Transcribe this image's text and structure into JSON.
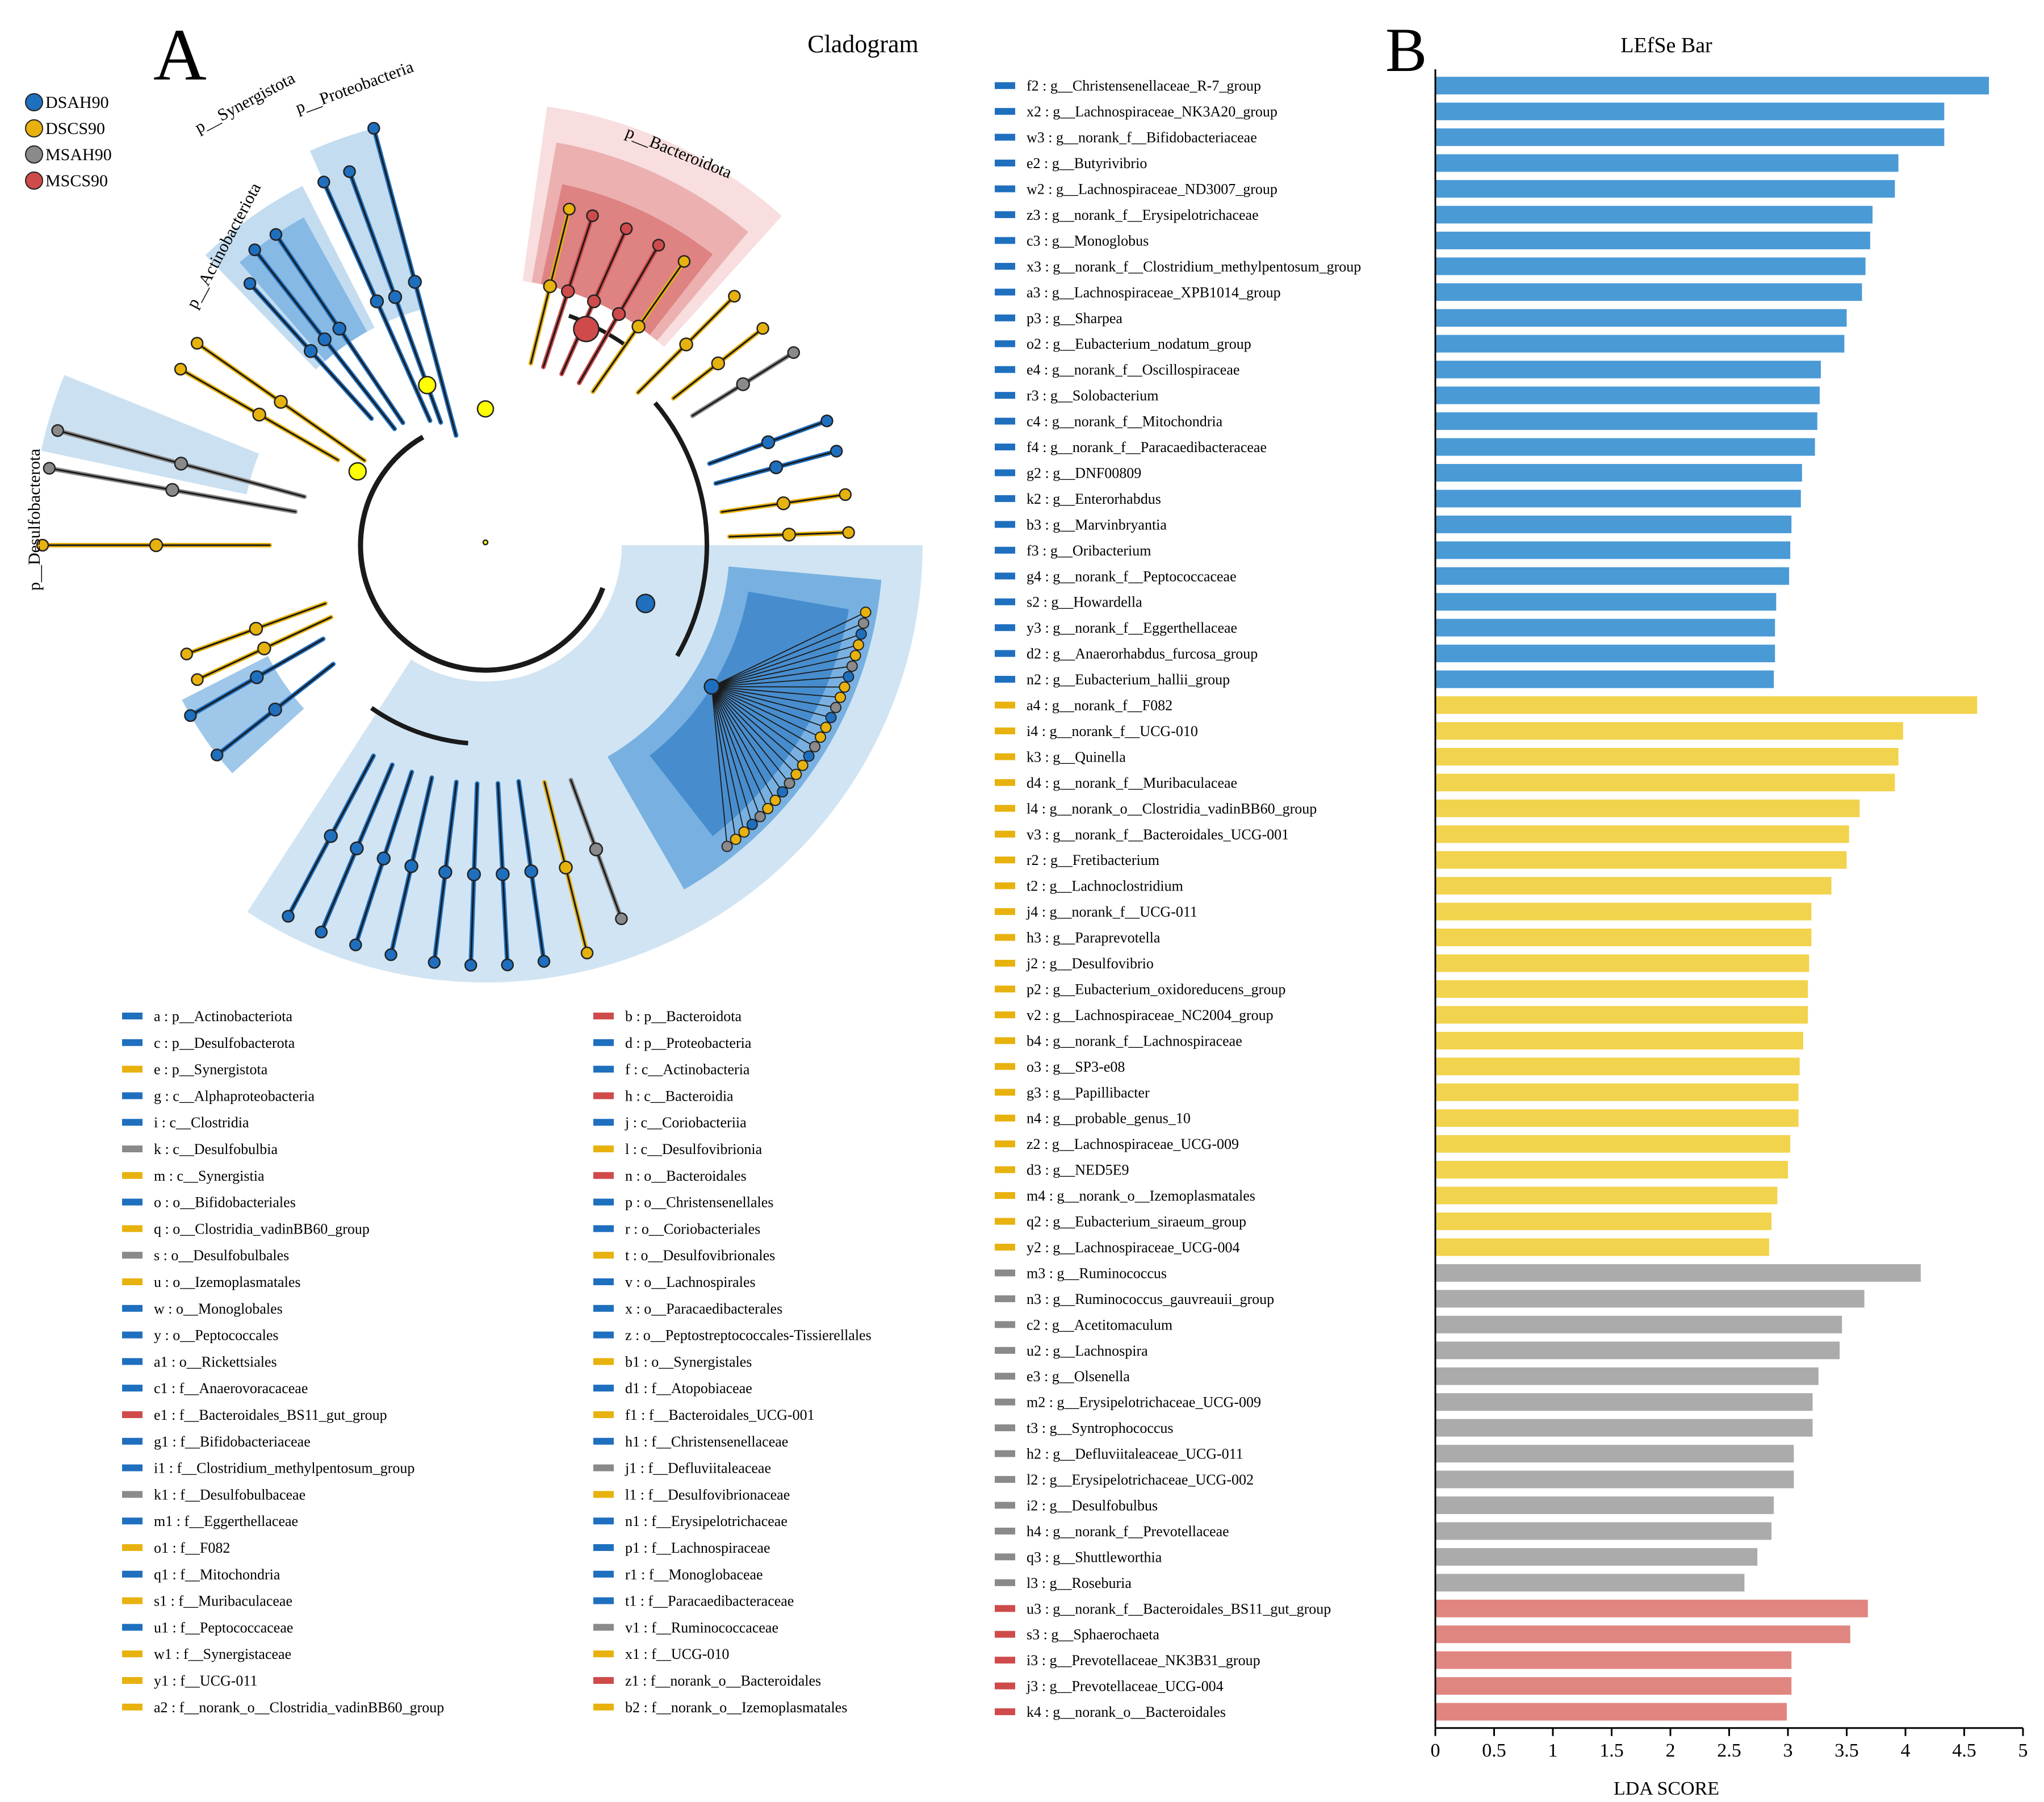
{
  "panel_a": {
    "letter": "A",
    "title": "Cladogram",
    "groups": [
      {
        "name": "DSAH90",
        "color": "#1f6fbf"
      },
      {
        "name": "DSCS90",
        "color": "#e8b20e"
      },
      {
        "name": "MSAH90",
        "color": "#8a8a8a"
      },
      {
        "name": "MSCS90",
        "color": "#cf4b4b"
      }
    ],
    "clade_labels": [
      "p__Actinobacteriota",
      "p__Synergistota",
      "p__Proteobacteria",
      "p__Bacteroidota",
      "p__Desulfobacterota"
    ],
    "legend_col1": [
      {
        "text": "a : p__Actinobacteriota",
        "group": "DSAH90"
      },
      {
        "text": "c : p__Desulfobacterota",
        "group": "DSAH90"
      },
      {
        "text": "e : p__Synergistota",
        "group": "DSCS90"
      },
      {
        "text": "g : c__Alphaproteobacteria",
        "group": "DSAH90"
      },
      {
        "text": "i : c__Clostridia",
        "group": "DSAH90"
      },
      {
        "text": "k : c__Desulfobulbia",
        "group": "MSAH90"
      },
      {
        "text": "m : c__Synergistia",
        "group": "DSCS90"
      },
      {
        "text": "o : o__Bifidobacteriales",
        "group": "DSAH90"
      },
      {
        "text": "q : o__Clostridia_vadinBB60_group",
        "group": "DSCS90"
      },
      {
        "text": "s : o__Desulfobulbales",
        "group": "MSAH90"
      },
      {
        "text": "u : o__Izemoplasmatales",
        "group": "DSCS90"
      },
      {
        "text": "w : o__Monoglobales",
        "group": "DSAH90"
      },
      {
        "text": "y : o__Peptococcales",
        "group": "DSAH90"
      },
      {
        "text": "a1 : o__Rickettsiales",
        "group": "DSAH90"
      },
      {
        "text": "c1 : f__Anaerovoracaceae",
        "group": "DSAH90"
      },
      {
        "text": "e1 : f__Bacteroidales_BS11_gut_group",
        "group": "MSCS90"
      },
      {
        "text": "g1 : f__Bifidobacteriaceae",
        "group": "DSAH90"
      },
      {
        "text": "i1 : f__Clostridium_methylpentosum_group",
        "group": "DSAH90"
      },
      {
        "text": "k1 : f__Desulfobulbaceae",
        "group": "MSAH90"
      },
      {
        "text": "m1 : f__Eggerthellaceae",
        "group": "DSAH90"
      },
      {
        "text": "o1 : f__F082",
        "group": "DSCS90"
      },
      {
        "text": "q1 : f__Mitochondria",
        "group": "DSAH90"
      },
      {
        "text": "s1 : f__Muribaculaceae",
        "group": "DSCS90"
      },
      {
        "text": "u1 : f__Peptococcaceae",
        "group": "DSAH90"
      },
      {
        "text": "w1 : f__Synergistaceae",
        "group": "DSCS90"
      },
      {
        "text": "y1 : f__UCG-011",
        "group": "DSCS90"
      },
      {
        "text": "a2 : f__norank_o__Clostridia_vadinBB60_group",
        "group": "DSCS90"
      }
    ],
    "legend_col2": [
      {
        "text": "b : p__Bacteroidota",
        "group": "MSCS90"
      },
      {
        "text": "d : p__Proteobacteria",
        "group": "DSAH90"
      },
      {
        "text": "f : c__Actinobacteria",
        "group": "DSAH90"
      },
      {
        "text": "h : c__Bacteroidia",
        "group": "MSCS90"
      },
      {
        "text": "j : c__Coriobacteriia",
        "group": "DSAH90"
      },
      {
        "text": "l : c__Desulfovibrionia",
        "group": "DSCS90"
      },
      {
        "text": "n : o__Bacteroidales",
        "group": "MSCS90"
      },
      {
        "text": "p : o__Christensenellales",
        "group": "DSAH90"
      },
      {
        "text": "r : o__Coriobacteriales",
        "group": "DSAH90"
      },
      {
        "text": "t : o__Desulfovibrionales",
        "group": "DSCS90"
      },
      {
        "text": "v : o__Lachnospirales",
        "group": "DSAH90"
      },
      {
        "text": "x : o__Paracaedibacterales",
        "group": "DSAH90"
      },
      {
        "text": "z : o__Peptostreptococcales-Tissierellales",
        "group": "DSAH90"
      },
      {
        "text": "b1 : o__Synergistales",
        "group": "DSCS90"
      },
      {
        "text": "d1 : f__Atopobiaceae",
        "group": "DSAH90"
      },
      {
        "text": "f1 : f__Bacteroidales_UCG-001",
        "group": "DSCS90"
      },
      {
        "text": "h1 : f__Christensenellaceae",
        "group": "DSAH90"
      },
      {
        "text": "j1 : f__Defluviitaleaceae",
        "group": "MSAH90"
      },
      {
        "text": "l1 : f__Desulfovibrionaceae",
        "group": "DSCS90"
      },
      {
        "text": "n1 : f__Erysipelotrichaceae",
        "group": "DSAH90"
      },
      {
        "text": "p1 : f__Lachnospiraceae",
        "group": "DSAH90"
      },
      {
        "text": "r1 : f__Monoglobaceae",
        "group": "DSAH90"
      },
      {
        "text": "t1 : f__Paracaedibacteraceae",
        "group": "DSAH90"
      },
      {
        "text": "v1 : f__Ruminococcaceae",
        "group": "MSAH90"
      },
      {
        "text": "x1 : f__UCG-010",
        "group": "DSCS90"
      },
      {
        "text": "z1 : f__norank_o__Bacteroidales",
        "group": "MSCS90"
      },
      {
        "text": "b2 : f__norank_o__Izemoplasmatales",
        "group": "DSCS90"
      }
    ]
  },
  "chart_data": {
    "type": "bar",
    "orientation": "horizontal",
    "letter": "B",
    "title": "LEfSe Bar",
    "xlabel": "LDA SCORE",
    "ylabel": "",
    "xlim": [
      0,
      5
    ],
    "xticks": [
      "0",
      "0.5",
      "1",
      "1.5",
      "2",
      "2.5",
      "3",
      "3.5",
      "4",
      "4.5",
      "5"
    ],
    "group_colors": {
      "DSAH90": "#4a9ad6",
      "DSCS90": "#f2d34d",
      "MSAH90": "#ababab",
      "MSCS90": "#e08580"
    },
    "marker_colors": {
      "DSAH90": "#1f6fbf",
      "DSCS90": "#e8b20e",
      "MSAH90": "#8a8a8a",
      "MSCS90": "#cf4b4b"
    },
    "bars": [
      {
        "label": "f2 : g__Christensenellaceae_R-7_group",
        "value": 4.71,
        "group": "DSAH90"
      },
      {
        "label": "x2 : g__Lachnospiraceae_NK3A20_group",
        "value": 4.33,
        "group": "DSAH90"
      },
      {
        "label": "w3 : g__norank_f__Bifidobacteriaceae",
        "value": 4.33,
        "group": "DSAH90"
      },
      {
        "label": "e2 : g__Butyrivibrio",
        "value": 3.94,
        "group": "DSAH90"
      },
      {
        "label": "w2 : g__Lachnospiraceae_ND3007_group",
        "value": 3.91,
        "group": "DSAH90"
      },
      {
        "label": "z3 : g__norank_f__Erysipelotrichaceae",
        "value": 3.72,
        "group": "DSAH90"
      },
      {
        "label": "c3 : g__Monoglobus",
        "value": 3.7,
        "group": "DSAH90"
      },
      {
        "label": "x3 : g__norank_f__Clostridium_methylpentosum_group",
        "value": 3.66,
        "group": "DSAH90"
      },
      {
        "label": "a3 : g__Lachnospiraceae_XPB1014_group",
        "value": 3.63,
        "group": "DSAH90"
      },
      {
        "label": "p3 : g__Sharpea",
        "value": 3.5,
        "group": "DSAH90"
      },
      {
        "label": "o2 : g__Eubacterium_nodatum_group",
        "value": 3.48,
        "group": "DSAH90"
      },
      {
        "label": "e4 : g__norank_f__Oscillospiraceae",
        "value": 3.28,
        "group": "DSAH90"
      },
      {
        "label": "r3 : g__Solobacterium",
        "value": 3.27,
        "group": "DSAH90"
      },
      {
        "label": "c4 : g__norank_f__Mitochondria",
        "value": 3.25,
        "group": "DSAH90"
      },
      {
        "label": "f4 : g__norank_f__Paracaedibacteraceae",
        "value": 3.23,
        "group": "DSAH90"
      },
      {
        "label": "g2 : g__DNF00809",
        "value": 3.12,
        "group": "DSAH90"
      },
      {
        "label": "k2 : g__Enterorhabdus",
        "value": 3.11,
        "group": "DSAH90"
      },
      {
        "label": "b3 : g__Marvinbryantia",
        "value": 3.03,
        "group": "DSAH90"
      },
      {
        "label": "f3 : g__Oribacterium",
        "value": 3.02,
        "group": "DSAH90"
      },
      {
        "label": "g4 : g__norank_f__Peptococcaceae",
        "value": 3.01,
        "group": "DSAH90"
      },
      {
        "label": "s2 : g__Howardella",
        "value": 2.9,
        "group": "DSAH90"
      },
      {
        "label": "y3 : g__norank_f__Eggerthellaceae",
        "value": 2.89,
        "group": "DSAH90"
      },
      {
        "label": "d2 : g__Anaerorhabdus_furcosa_group",
        "value": 2.89,
        "group": "DSAH90"
      },
      {
        "label": "n2 : g__Eubacterium_hallii_group",
        "value": 2.88,
        "group": "DSAH90"
      },
      {
        "label": "a4 : g__norank_f__F082",
        "value": 4.61,
        "group": "DSCS90"
      },
      {
        "label": "i4 : g__norank_f__UCG-010",
        "value": 3.98,
        "group": "DSCS90"
      },
      {
        "label": "k3 : g__Quinella",
        "value": 3.94,
        "group": "DSCS90"
      },
      {
        "label": "d4 : g__norank_f__Muribaculaceae",
        "value": 3.91,
        "group": "DSCS90"
      },
      {
        "label": "l4 : g__norank_o__Clostridia_vadinBB60_group",
        "value": 3.61,
        "group": "DSCS90"
      },
      {
        "label": "v3 : g__norank_f__Bacteroidales_UCG-001",
        "value": 3.52,
        "group": "DSCS90"
      },
      {
        "label": "r2 : g__Fretibacterium",
        "value": 3.5,
        "group": "DSCS90"
      },
      {
        "label": "t2 : g__Lachnoclostridium",
        "value": 3.37,
        "group": "DSCS90"
      },
      {
        "label": "j4 : g__norank_f__UCG-011",
        "value": 3.2,
        "group": "DSCS90"
      },
      {
        "label": "h3 : g__Paraprevotella",
        "value": 3.2,
        "group": "DSCS90"
      },
      {
        "label": "j2 : g__Desulfovibrio",
        "value": 3.18,
        "group": "DSCS90"
      },
      {
        "label": "p2 : g__Eubacterium_oxidoreducens_group",
        "value": 3.17,
        "group": "DSCS90"
      },
      {
        "label": "v2 : g__Lachnospiraceae_NC2004_group",
        "value": 3.17,
        "group": "DSCS90"
      },
      {
        "label": "b4 : g__norank_f__Lachnospiraceae",
        "value": 3.13,
        "group": "DSCS90"
      },
      {
        "label": "o3 : g__SP3-e08",
        "value": 3.1,
        "group": "DSCS90"
      },
      {
        "label": "g3 : g__Papillibacter",
        "value": 3.09,
        "group": "DSCS90"
      },
      {
        "label": "n4 : g__probable_genus_10",
        "value": 3.09,
        "group": "DSCS90"
      },
      {
        "label": "z2 : g__Lachnospiraceae_UCG-009",
        "value": 3.02,
        "group": "DSCS90"
      },
      {
        "label": "d3 : g__NED5E9",
        "value": 3.0,
        "group": "DSCS90"
      },
      {
        "label": "m4 : g__norank_o__Izemoplasmatales",
        "value": 2.91,
        "group": "DSCS90"
      },
      {
        "label": "q2 : g__Eubacterium_siraeum_group",
        "value": 2.86,
        "group": "DSCS90"
      },
      {
        "label": "y2 : g__Lachnospiraceae_UCG-004",
        "value": 2.84,
        "group": "DSCS90"
      },
      {
        "label": "m3 : g__Ruminococcus",
        "value": 4.13,
        "group": "MSAH90"
      },
      {
        "label": "n3 : g__Ruminococcus_gauvreauii_group",
        "value": 3.65,
        "group": "MSAH90"
      },
      {
        "label": "c2 : g__Acetitomaculum",
        "value": 3.46,
        "group": "MSAH90"
      },
      {
        "label": "u2 : g__Lachnospira",
        "value": 3.44,
        "group": "MSAH90"
      },
      {
        "label": "e3 : g__Olsenella",
        "value": 3.26,
        "group": "MSAH90"
      },
      {
        "label": "m2 : g__Erysipelotrichaceae_UCG-009",
        "value": 3.21,
        "group": "MSAH90"
      },
      {
        "label": "t3 : g__Syntrophococcus",
        "value": 3.21,
        "group": "MSAH90"
      },
      {
        "label": "h2 : g__Defluviitaleaceae_UCG-011",
        "value": 3.05,
        "group": "MSAH90"
      },
      {
        "label": "l2 : g__Erysipelotrichaceae_UCG-002",
        "value": 3.05,
        "group": "MSAH90"
      },
      {
        "label": "i2 : g__Desulfobulbus",
        "value": 2.88,
        "group": "MSAH90"
      },
      {
        "label": "h4 : g__norank_f__Prevotellaceae",
        "value": 2.86,
        "group": "MSAH90"
      },
      {
        "label": "q3 : g__Shuttleworthia",
        "value": 2.74,
        "group": "MSAH90"
      },
      {
        "label": "l3 : g__Roseburia",
        "value": 2.63,
        "group": "MSAH90"
      },
      {
        "label": "u3 : g__norank_f__Bacteroidales_BS11_gut_group",
        "value": 3.68,
        "group": "MSCS90"
      },
      {
        "label": "s3 : g__Sphaerochaeta",
        "value": 3.53,
        "group": "MSCS90"
      },
      {
        "label": "i3 : g__Prevotellaceae_NK3B31_group",
        "value": 3.03,
        "group": "MSCS90"
      },
      {
        "label": "j3 : g__Prevotellaceae_UCG-004",
        "value": 3.03,
        "group": "MSCS90"
      },
      {
        "label": "k4 : g__norank_o__Bacteroidales",
        "value": 2.99,
        "group": "MSCS90"
      }
    ]
  }
}
